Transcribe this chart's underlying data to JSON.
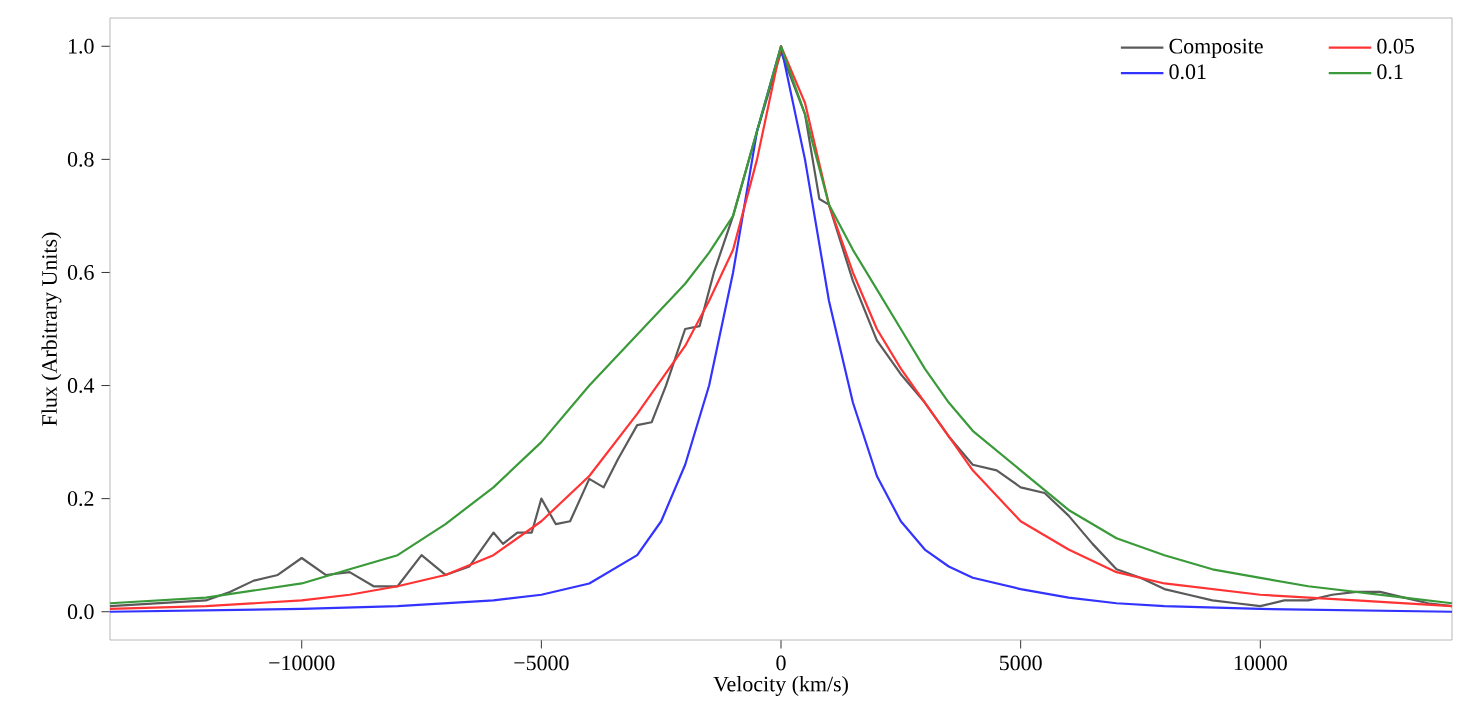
{
  "chart_data": {
    "type": "line",
    "xlabel": "Velocity (km/s)",
    "ylabel": "Flux (Arbitrary Units)",
    "xlim": [
      -14000,
      14000
    ],
    "ylim": [
      -0.05,
      1.05
    ],
    "xticks": [
      {
        "value": -10000,
        "label": "−10000"
      },
      {
        "value": -5000,
        "label": "−5000"
      },
      0,
      5000,
      10000
    ],
    "yticks": [
      {
        "value": 0,
        "label": "0.0"
      },
      {
        "value": 0.2,
        "label": "0.2"
      },
      {
        "value": 0.4,
        "label": "0.4"
      },
      {
        "value": 0.6,
        "label": "0.6"
      },
      {
        "value": 0.8,
        "label": "0.8"
      },
      {
        "value": 1,
        "label": "1.0"
      }
    ],
    "grid": false,
    "legend": "top right",
    "marker": "none",
    "line_style": "solid",
    "series": [
      {
        "name": "Composite",
        "color": "#5a5a5a",
        "x": [
          -14000,
          -12000,
          -11500,
          -11000,
          -10500,
          -10000,
          -9500,
          -9000,
          -8500,
          -8000,
          -7500,
          -7000,
          -6500,
          -6000,
          -5800,
          -5500,
          -5200,
          -5000,
          -4700,
          -4400,
          -4000,
          -3700,
          -3400,
          -3000,
          -2700,
          -2400,
          -2000,
          -1700,
          -1400,
          -1000,
          -500,
          0,
          500,
          800,
          1000,
          1500,
          2000,
          2500,
          3000,
          3500,
          4000,
          4500,
          5000,
          5500,
          6000,
          6500,
          7000,
          7500,
          8000,
          8500,
          9000,
          9500,
          10000,
          10500,
          11000,
          11500,
          12000,
          12500,
          13000,
          13500,
          14000
        ],
        "values": [
          0.01,
          0.02,
          0.035,
          0.055,
          0.065,
          0.095,
          0.065,
          0.07,
          0.045,
          0.045,
          0.1,
          0.065,
          0.08,
          0.14,
          0.12,
          0.14,
          0.14,
          0.2,
          0.155,
          0.16,
          0.235,
          0.22,
          0.27,
          0.33,
          0.335,
          0.4,
          0.5,
          0.505,
          0.6,
          0.7,
          0.85,
          0.99,
          0.88,
          0.73,
          0.72,
          0.585,
          0.48,
          0.42,
          0.37,
          0.31,
          0.26,
          0.25,
          0.22,
          0.21,
          0.17,
          0.12,
          0.075,
          0.06,
          0.04,
          0.03,
          0.02,
          0.015,
          0.01,
          0.02,
          0.02,
          0.03,
          0.035,
          0.035,
          0.025,
          0.015,
          0.01
        ]
      },
      {
        "name": "0.01",
        "color": "#3333ff",
        "x": [
          -14000,
          -10000,
          -8000,
          -6000,
          -5000,
          -4000,
          -3000,
          -2500,
          -2000,
          -1500,
          -1000,
          -500,
          0,
          500,
          1000,
          1500,
          2000,
          2500,
          3000,
          3500,
          4000,
          5000,
          6000,
          7000,
          8000,
          10000,
          14000
        ],
        "values": [
          0.0,
          0.005,
          0.01,
          0.02,
          0.03,
          0.05,
          0.1,
          0.16,
          0.26,
          0.4,
          0.6,
          0.85,
          1.0,
          0.8,
          0.55,
          0.37,
          0.24,
          0.16,
          0.11,
          0.08,
          0.06,
          0.04,
          0.025,
          0.015,
          0.01,
          0.005,
          0.0
        ]
      },
      {
        "name": "0.05",
        "color": "#ff3333",
        "x": [
          -14000,
          -12000,
          -10000,
          -9000,
          -8000,
          -7000,
          -6000,
          -5000,
          -4000,
          -3000,
          -2000,
          -1500,
          -1000,
          -500,
          0,
          500,
          1000,
          1500,
          2000,
          2500,
          3000,
          3500,
          4000,
          5000,
          6000,
          7000,
          8000,
          9000,
          10000,
          12000,
          14000
        ],
        "values": [
          0.005,
          0.01,
          0.02,
          0.03,
          0.045,
          0.065,
          0.1,
          0.16,
          0.24,
          0.35,
          0.47,
          0.55,
          0.64,
          0.8,
          1.0,
          0.9,
          0.72,
          0.6,
          0.5,
          0.43,
          0.37,
          0.31,
          0.25,
          0.16,
          0.11,
          0.07,
          0.05,
          0.04,
          0.03,
          0.02,
          0.01
        ]
      },
      {
        "name": "0.1",
        "color": "#3a9a3a",
        "x": [
          -14000,
          -12000,
          -10000,
          -9000,
          -8000,
          -7000,
          -6000,
          -5000,
          -4000,
          -3000,
          -2000,
          -1500,
          -1000,
          -500,
          0,
          500,
          1000,
          1500,
          2000,
          2500,
          3000,
          3500,
          4000,
          5000,
          6000,
          7000,
          8000,
          9000,
          10000,
          11000,
          12000,
          13000,
          14000
        ],
        "values": [
          0.015,
          0.025,
          0.05,
          0.075,
          0.1,
          0.155,
          0.22,
          0.3,
          0.4,
          0.49,
          0.58,
          0.635,
          0.7,
          0.85,
          1.0,
          0.88,
          0.72,
          0.64,
          0.57,
          0.5,
          0.43,
          0.37,
          0.32,
          0.25,
          0.18,
          0.13,
          0.1,
          0.075,
          0.06,
          0.045,
          0.035,
          0.025,
          0.015
        ]
      }
    ]
  }
}
